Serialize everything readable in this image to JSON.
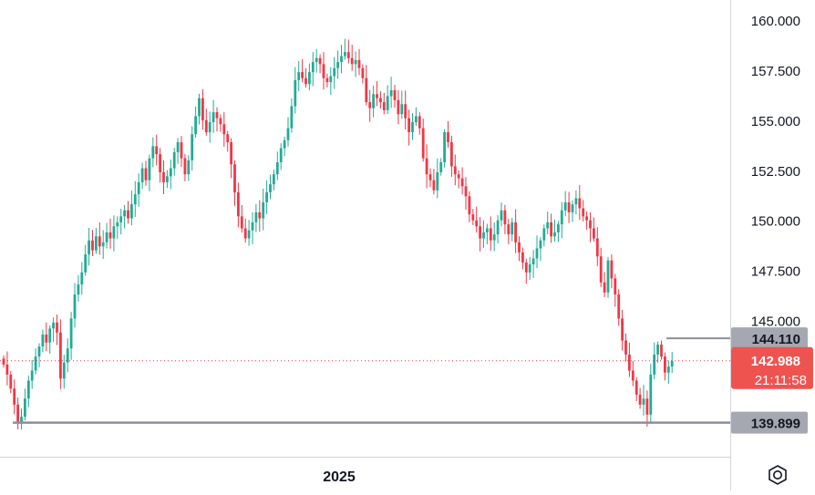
{
  "chart_data": {
    "type": "candlestick",
    "x_axis": {
      "tick_labels": [
        "2025"
      ]
    },
    "y_axis": {
      "range": [
        138.2,
        161.0
      ],
      "tick_labels": [
        {
          "value": 160.0,
          "label": "160.000"
        },
        {
          "value": 157.5,
          "label": "157.500"
        },
        {
          "value": 155.0,
          "label": "155.000"
        },
        {
          "value": 152.5,
          "label": "152.500"
        },
        {
          "value": 150.0,
          "label": "150.000"
        },
        {
          "value": 147.5,
          "label": "147.500"
        },
        {
          "value": 145.0,
          "label": "145.000"
        }
      ]
    },
    "horizontal_levels": [
      {
        "name": "resistance",
        "value": 144.11,
        "label": "144.110"
      },
      {
        "name": "support",
        "value": 139.899,
        "label": "139.899"
      }
    ],
    "current_price": {
      "value": 142.988,
      "label": "142.988",
      "countdown": "21:11:58"
    },
    "closes": [
      142.8,
      142.3,
      141.6,
      140.8,
      139.9,
      140.2,
      141.1,
      142.0,
      142.5,
      143.2,
      143.7,
      144.3,
      143.9,
      144.6,
      144.9,
      144.4,
      142.1,
      142.9,
      143.6,
      145.1,
      146.3,
      146.8,
      147.4,
      148.3,
      149.0,
      148.5,
      149.2,
      148.7,
      148.9,
      149.4,
      149.1,
      149.7,
      149.9,
      150.2,
      150.5,
      150.1,
      150.8,
      151.3,
      151.9,
      152.6,
      152.0,
      153.1,
      153.7,
      153.3,
      152.4,
      151.9,
      152.2,
      152.6,
      153.4,
      153.9,
      153.1,
      152.3,
      153.0,
      154.3,
      155.2,
      156.1,
      155.0,
      154.4,
      154.9,
      155.4,
      155.1,
      154.8,
      154.3,
      153.9,
      152.8,
      151.4,
      150.2,
      149.6,
      149.1,
      149.5,
      149.9,
      150.4,
      150.1,
      150.9,
      151.4,
      151.8,
      152.3,
      152.9,
      153.6,
      154.0,
      154.6,
      155.7,
      157.0,
      157.4,
      157.1,
      156.8,
      157.4,
      157.9,
      158.1,
      157.8,
      157.1,
      156.9,
      157.2,
      157.6,
      157.9,
      158.2,
      158.4,
      158.1,
      157.8,
      158.0,
      157.6,
      157.1,
      155.9,
      155.6,
      156.3,
      156.1,
      155.9,
      155.5,
      156.2,
      156.5,
      156.0,
      155.3,
      155.8,
      155.1,
      154.4,
      154.9,
      155.2,
      154.6,
      153.1,
      152.3,
      152.0,
      151.5,
      152.4,
      152.9,
      154.4,
      153.9,
      152.7,
      152.3,
      152.1,
      151.7,
      151.2,
      150.3,
      150.0,
      149.7,
      149.1,
      149.4,
      149.6,
      149.0,
      149.3,
      150.0,
      150.5,
      149.8,
      149.3,
      149.9,
      148.9,
      148.4,
      147.9,
      147.4,
      147.8,
      148.1,
      148.6,
      149.0,
      149.6,
      149.9,
      149.2,
      149.4,
      149.8,
      150.5,
      150.9,
      150.4,
      150.8,
      151.1,
      150.6,
      150.2,
      150.0,
      149.6,
      149.1,
      148.2,
      146.9,
      146.4,
      148.0,
      147.1,
      146.3,
      145.1,
      144.0,
      143.3,
      142.5,
      142.0,
      141.3,
      140.8,
      141.1,
      140.3,
      142.3,
      143.3,
      143.8,
      143.2,
      142.4,
      142.7,
      142.988
    ]
  },
  "ui": {
    "settings_icon": "gear-icon"
  }
}
